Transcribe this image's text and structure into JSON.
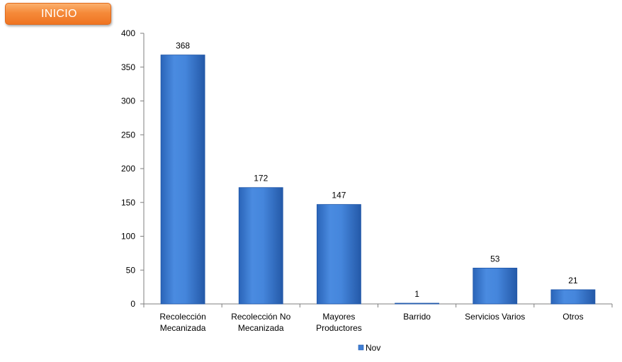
{
  "inicio_button": {
    "label": "INICIO"
  },
  "colors": {
    "bar": "#3f7fd6",
    "bar_light": "#6aa3ea",
    "bar_dark": "#1f56a8",
    "axis": "#7f7f7f",
    "button": "#f58a3a"
  },
  "chart_data": {
    "type": "bar",
    "categories": [
      [
        "Recolección",
        "Mecanizada"
      ],
      [
        "Recolección No",
        "Mecanizada"
      ],
      [
        "Mayores",
        "Productores"
      ],
      [
        "Barrido"
      ],
      [
        "Servicios Varios"
      ],
      [
        "Otros"
      ]
    ],
    "series": [
      {
        "name": "Nov",
        "values": [
          368,
          172,
          147,
          1,
          53,
          21
        ]
      }
    ],
    "ylim": [
      0,
      400
    ],
    "yticks": [
      0,
      50,
      100,
      150,
      200,
      250,
      300,
      350,
      400
    ],
    "grid": false,
    "legend_position": "bottom",
    "data_labels": true
  }
}
